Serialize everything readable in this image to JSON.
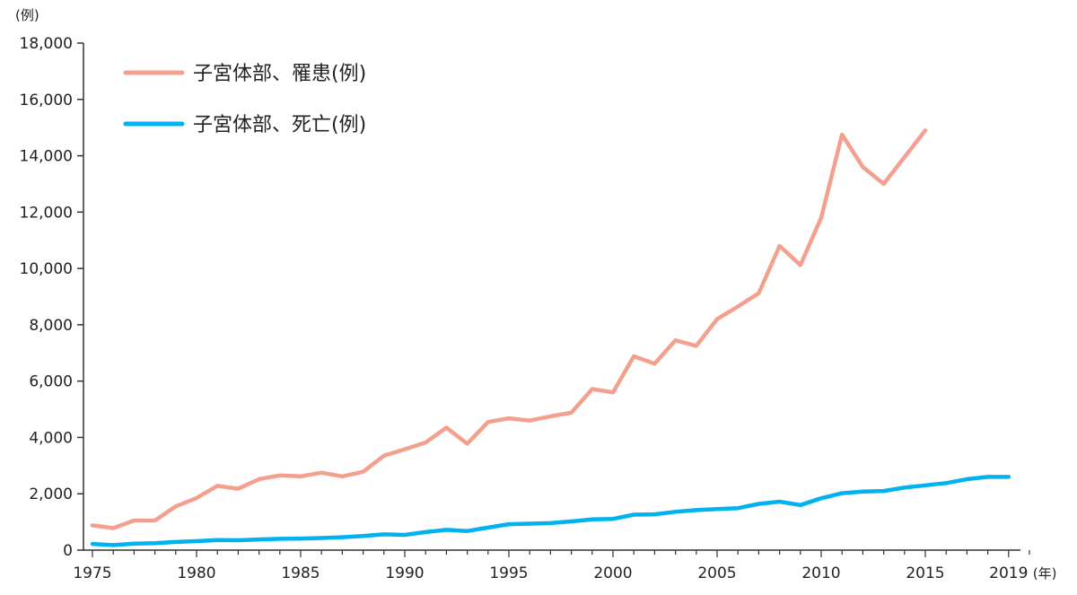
{
  "chart_data": {
    "type": "line",
    "y_unit_label": "(例)",
    "x_unit_label": "(年)",
    "ylim": [
      0,
      18000
    ],
    "xlim": [
      1975,
      2020
    ],
    "y_ticks": [
      0,
      2000,
      4000,
      6000,
      8000,
      10000,
      12000,
      14000,
      16000,
      18000
    ],
    "y_tick_labels": [
      "0",
      "2,000",
      "4,000",
      "6,000",
      "8,000",
      "10,000",
      "12,000",
      "14,000",
      "16,000",
      "18,000"
    ],
    "x_ticks": [
      1975,
      1980,
      1985,
      1990,
      1995,
      2000,
      2005,
      2010,
      2015,
      2019
    ],
    "x_tick_labels": [
      "1975",
      "1980",
      "1985",
      "1990",
      "1995",
      "2000",
      "2005",
      "2010",
      "2015",
      "2019"
    ],
    "legend_position": "top-left",
    "grid": false,
    "series": [
      {
        "name": "子宮体部、罹患(例)",
        "color": "#f4a08e",
        "x": [
          1975,
          1976,
          1977,
          1978,
          1979,
          1980,
          1981,
          1982,
          1983,
          1984,
          1985,
          1986,
          1987,
          1988,
          1989,
          1990,
          1991,
          1992,
          1993,
          1994,
          1995,
          1996,
          1997,
          1998,
          1999,
          2000,
          2001,
          2002,
          2003,
          2004,
          2005,
          2006,
          2007,
          2008,
          2009,
          2010,
          2011,
          2012,
          2013,
          2014,
          2015
        ],
        "values": [
          880,
          780,
          1050,
          1050,
          1550,
          1850,
          2280,
          2180,
          2520,
          2650,
          2620,
          2750,
          2620,
          2780,
          3350,
          3580,
          3820,
          4350,
          3780,
          4550,
          4680,
          4600,
          4750,
          4880,
          5720,
          5600,
          6880,
          6620,
          7450,
          7250,
          8200,
          8650,
          9120,
          10800,
          10120,
          11800,
          14750,
          13600,
          13000,
          13950,
          14900
        ]
      },
      {
        "name": "子宮体部、死亡(例)",
        "color": "#00b2f0",
        "x": [
          1975,
          1976,
          1977,
          1978,
          1979,
          1980,
          1981,
          1982,
          1983,
          1984,
          1985,
          1986,
          1987,
          1988,
          1989,
          1990,
          1991,
          1992,
          1993,
          1994,
          1995,
          1996,
          1997,
          1998,
          1999,
          2000,
          2001,
          2002,
          2003,
          2004,
          2005,
          2006,
          2007,
          2008,
          2009,
          2010,
          2011,
          2012,
          2013,
          2014,
          2015,
          2016,
          2017,
          2018,
          2019
        ],
        "values": [
          220,
          180,
          230,
          250,
          290,
          320,
          360,
          350,
          380,
          400,
          410,
          430,
          460,
          500,
          560,
          540,
          640,
          720,
          680,
          800,
          920,
          940,
          960,
          1020,
          1090,
          1110,
          1260,
          1270,
          1360,
          1420,
          1460,
          1490,
          1640,
          1720,
          1600,
          1840,
          2020,
          2080,
          2100,
          2220,
          2300,
          2380,
          2520,
          2600,
          2600
        ]
      }
    ]
  }
}
